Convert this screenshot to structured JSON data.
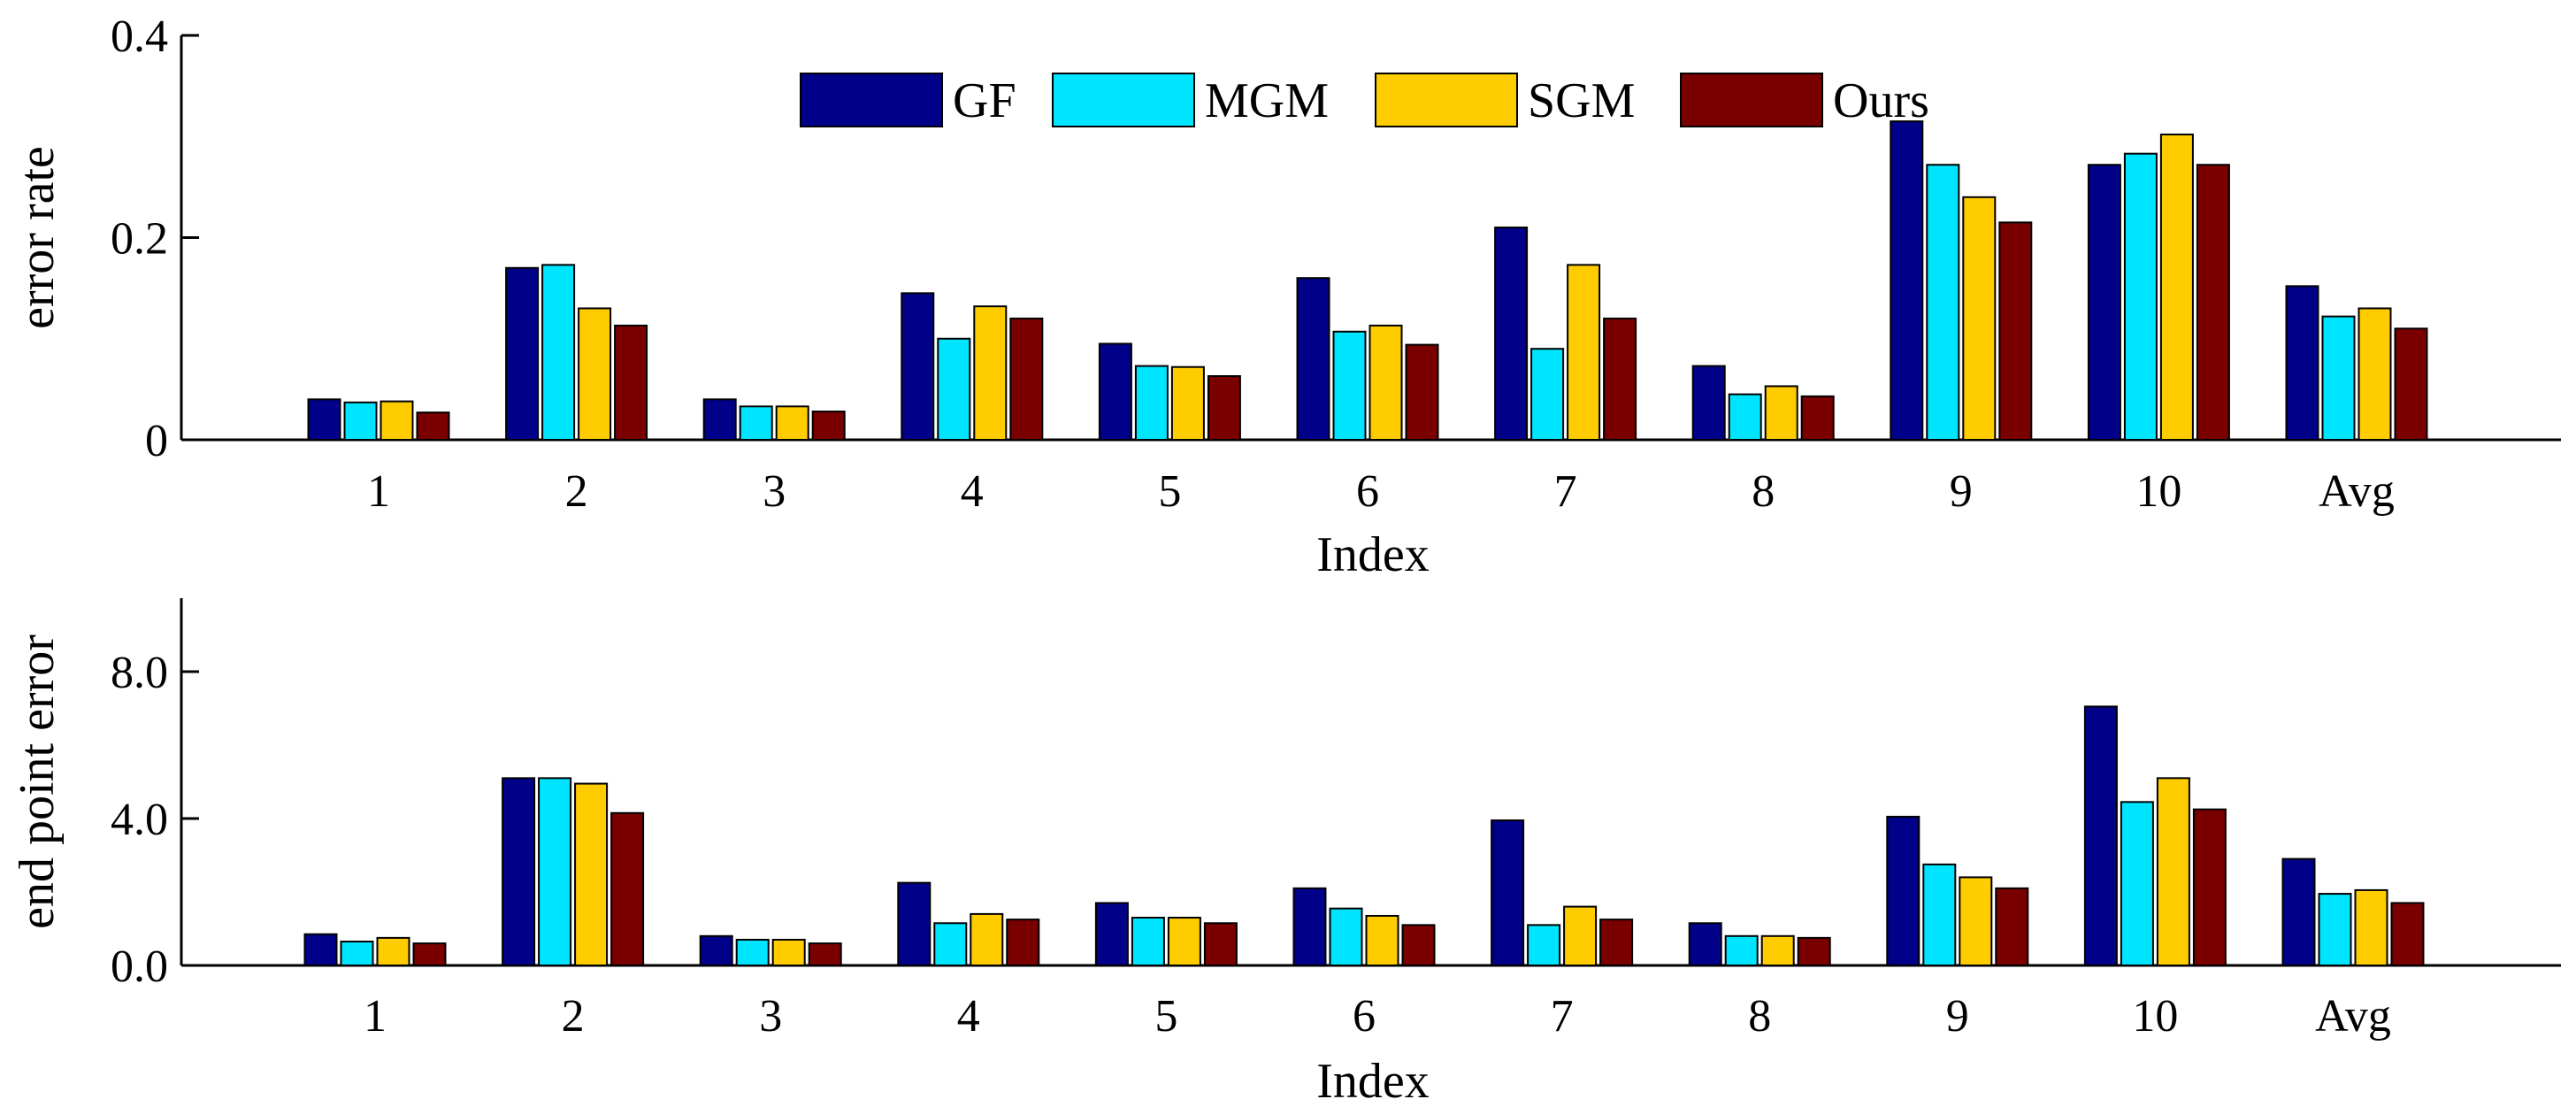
{
  "chart_data": [
    {
      "type": "bar",
      "xlabel": "Index",
      "ylabel": "error rate",
      "categories": [
        "1",
        "2",
        "3",
        "4",
        "5",
        "6",
        "7",
        "8",
        "9",
        "10",
        "Avg"
      ],
      "ylim": [
        0,
        0.4
      ],
      "yticks": [
        0,
        0.2,
        0.4
      ],
      "ytick_labels": [
        "0",
        "0.2",
        "0.4"
      ],
      "legend": true,
      "series": [
        {
          "name": "GF",
          "color": "#000088",
          "values": [
            0.04,
            0.17,
            0.04,
            0.145,
            0.095,
            0.16,
            0.21,
            0.073,
            0.315,
            0.272,
            0.152
          ]
        },
        {
          "name": "MGM",
          "color": "#00E5FF",
          "values": [
            0.037,
            0.173,
            0.033,
            0.1,
            0.073,
            0.107,
            0.09,
            0.045,
            0.272,
            0.283,
            0.122
          ]
        },
        {
          "name": "SGM",
          "color": "#FFCC00",
          "values": [
            0.038,
            0.13,
            0.033,
            0.132,
            0.072,
            0.113,
            0.173,
            0.053,
            0.24,
            0.302,
            0.13
          ]
        },
        {
          "name": "Ours",
          "color": "#7A0000",
          "values": [
            0.027,
            0.113,
            0.028,
            0.12,
            0.063,
            0.094,
            0.12,
            0.043,
            0.215,
            0.272,
            0.11
          ]
        }
      ]
    },
    {
      "type": "bar",
      "xlabel": "Index",
      "ylabel": "end point error",
      "categories": [
        "1",
        "2",
        "3",
        "4",
        "5",
        "6",
        "7",
        "8",
        "9",
        "10",
        "Avg"
      ],
      "ylim": [
        0,
        10
      ],
      "yticks": [
        0,
        4,
        8
      ],
      "ytick_labels": [
        "0.0",
        "4.0",
        "8.0"
      ],
      "legend": false,
      "series": [
        {
          "name": "GF",
          "color": "#000088",
          "values": [
            0.85,
            5.1,
            0.8,
            2.25,
            1.7,
            2.1,
            3.95,
            1.15,
            4.05,
            7.05,
            2.9
          ]
        },
        {
          "name": "MGM",
          "color": "#00E5FF",
          "values": [
            0.65,
            5.1,
            0.7,
            1.15,
            1.3,
            1.55,
            1.1,
            0.8,
            2.75,
            4.45,
            1.95
          ]
        },
        {
          "name": "SGM",
          "color": "#FFCC00",
          "values": [
            0.75,
            4.95,
            0.7,
            1.4,
            1.3,
            1.35,
            1.6,
            0.8,
            2.4,
            5.1,
            2.05
          ]
        },
        {
          "name": "Ours",
          "color": "#7A0000",
          "values": [
            0.6,
            4.15,
            0.6,
            1.25,
            1.15,
            1.1,
            1.25,
            0.75,
            2.1,
            4.25,
            1.7
          ]
        }
      ]
    }
  ]
}
